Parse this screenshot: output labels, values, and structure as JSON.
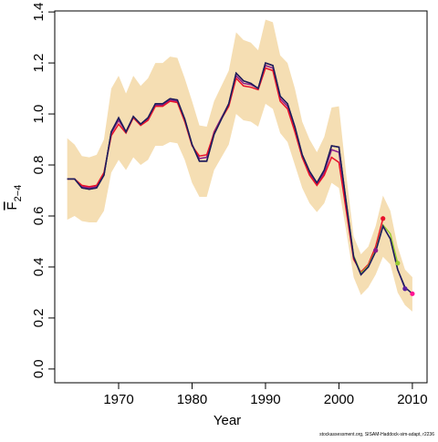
{
  "chart_data": {
    "type": "line",
    "x_label": "Year",
    "y_label": "F",
    "y_label_subscript": "2−4",
    "footnote": "stockassessment.org, SISAM-Haddock-sim-adapt, r2236",
    "x": [
      1963,
      1964,
      1965,
      1966,
      1967,
      1968,
      1969,
      1970,
      1971,
      1972,
      1973,
      1974,
      1975,
      1976,
      1977,
      1978,
      1979,
      1980,
      1981,
      1982,
      1983,
      1984,
      1985,
      1986,
      1987,
      1988,
      1989,
      1990,
      1991,
      1992,
      1993,
      1994,
      1995,
      1996,
      1997,
      1998,
      1999,
      2000,
      2001,
      2002,
      2003,
      2004,
      2005,
      2006,
      2007,
      2008,
      2009,
      2010
    ],
    "band": {
      "color": "#f5deb3",
      "upper": [
        0.905,
        0.88,
        0.835,
        0.83,
        0.84,
        0.9,
        1.1,
        1.15,
        1.08,
        1.15,
        1.11,
        1.14,
        1.2,
        1.2,
        1.225,
        1.22,
        1.14,
        1.05,
        0.955,
        0.95,
        1.05,
        1.11,
        1.17,
        1.32,
        1.29,
        1.28,
        1.25,
        1.37,
        1.36,
        1.23,
        1.2,
        1.1,
        0.97,
        0.9,
        0.85,
        0.91,
        1.025,
        1.03,
        0.76,
        0.52,
        0.45,
        0.48,
        0.56,
        0.68,
        0.62,
        0.48,
        0.39,
        0.36
      ],
      "lower": [
        0.585,
        0.6,
        0.58,
        0.575,
        0.575,
        0.62,
        0.77,
        0.82,
        0.78,
        0.83,
        0.8,
        0.82,
        0.875,
        0.875,
        0.89,
        0.885,
        0.82,
        0.73,
        0.675,
        0.675,
        0.78,
        0.83,
        0.88,
        1.0,
        0.975,
        0.97,
        0.95,
        1.04,
        1.02,
        0.925,
        0.89,
        0.8,
        0.71,
        0.65,
        0.615,
        0.65,
        0.73,
        0.71,
        0.54,
        0.36,
        0.29,
        0.32,
        0.37,
        0.44,
        0.41,
        0.3,
        0.25,
        0.225
      ]
    },
    "series": [
      {
        "color": "#8b1a8b",
        "values": [
          0.745,
          0.745,
          0.715,
          0.71,
          0.715,
          0.765,
          0.925,
          0.975,
          0.93,
          0.99,
          0.96,
          0.98,
          1.035,
          1.035,
          1.055,
          1.05,
          0.975,
          0.88,
          0.825,
          0.83,
          0.93,
          0.985,
          1.04,
          1.15,
          1.12,
          1.115,
          1.1,
          1.19,
          1.18,
          1.06,
          1.03,
          0.94,
          0.83,
          0.765,
          0.725,
          0.77,
          0.86,
          0.85,
          0.64,
          0.44,
          0.375,
          0.4,
          0.465,
          null,
          null,
          null,
          null,
          null
        ]
      },
      {
        "color": "#e8102a",
        "values": [
          0.745,
          0.745,
          0.72,
          0.715,
          0.72,
          0.77,
          0.915,
          0.96,
          0.925,
          0.985,
          0.955,
          0.975,
          1.03,
          1.03,
          1.05,
          1.045,
          0.97,
          0.875,
          0.835,
          0.84,
          0.925,
          0.98,
          1.03,
          1.14,
          1.11,
          1.105,
          1.095,
          1.18,
          1.17,
          1.05,
          1.02,
          0.93,
          0.83,
          0.76,
          0.72,
          0.76,
          0.83,
          0.81,
          0.62,
          0.43,
          0.38,
          0.41,
          0.48,
          0.59,
          null,
          null,
          null,
          null
        ]
      },
      {
        "color": "#9acd32",
        "values": [
          0.745,
          0.745,
          0.71,
          0.705,
          0.71,
          0.76,
          0.93,
          0.985,
          0.93,
          0.99,
          0.96,
          0.985,
          1.04,
          1.04,
          1.06,
          1.055,
          0.98,
          0.88,
          0.815,
          0.815,
          0.92,
          0.98,
          1.04,
          1.16,
          1.13,
          1.12,
          1.1,
          1.2,
          1.19,
          1.07,
          1.04,
          0.95,
          0.84,
          0.775,
          0.73,
          0.78,
          0.875,
          0.87,
          0.655,
          0.445,
          0.375,
          0.405,
          0.465,
          0.565,
          0.53,
          0.415,
          null,
          null
        ]
      },
      {
        "color": "#5b1fa0",
        "values": [
          0.745,
          0.745,
          0.71,
          0.705,
          0.71,
          0.76,
          0.93,
          0.985,
          0.93,
          0.99,
          0.96,
          0.985,
          1.04,
          1.04,
          1.06,
          1.055,
          0.98,
          0.88,
          0.815,
          0.815,
          0.92,
          0.98,
          1.04,
          1.16,
          1.13,
          1.12,
          1.1,
          1.2,
          1.19,
          1.07,
          1.04,
          0.95,
          0.84,
          0.775,
          0.73,
          0.78,
          0.875,
          0.87,
          0.65,
          0.44,
          0.37,
          0.4,
          0.46,
          0.56,
          0.51,
          0.39,
          0.315,
          null
        ]
      },
      {
        "color": "#1c1c5a",
        "dot_color": "#ff1493",
        "values": [
          0.745,
          0.745,
          0.71,
          0.705,
          0.71,
          0.76,
          0.93,
          0.985,
          0.93,
          0.99,
          0.96,
          0.985,
          1.04,
          1.04,
          1.06,
          1.055,
          0.98,
          0.88,
          0.815,
          0.815,
          0.92,
          0.98,
          1.04,
          1.16,
          1.13,
          1.12,
          1.1,
          1.2,
          1.19,
          1.07,
          1.04,
          0.95,
          0.84,
          0.775,
          0.73,
          0.78,
          0.875,
          0.87,
          0.65,
          0.44,
          0.37,
          0.4,
          0.46,
          0.56,
          0.51,
          0.39,
          0.32,
          0.295
        ]
      }
    ],
    "xlim": [
      1961.3,
      2012
    ],
    "ylim": [
      -0.054,
      1.404
    ],
    "xticks": [
      1970,
      1980,
      1990,
      2000,
      2010
    ],
    "yticks": [
      {
        "value": 0,
        "label": "0.0"
      },
      0.2,
      0.4,
      0.6,
      0.8,
      {
        "value": 1,
        "label": "1.0"
      },
      1.2,
      1.4
    ]
  }
}
